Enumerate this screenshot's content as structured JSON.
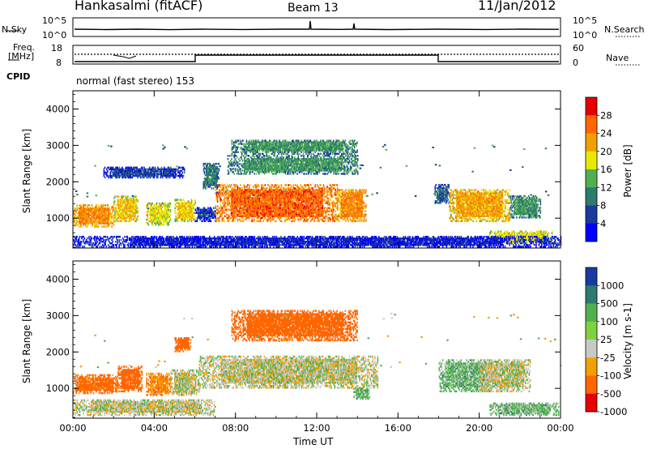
{
  "header": {
    "station": "Hankasalmi (fitACF)",
    "beam": "Beam 13",
    "date": "11/Jan/2012"
  },
  "top_panels": {
    "nsky_label": "N.Sky",
    "nsky_ticks": [
      "10^5",
      "10^0"
    ],
    "nsearch_label": "N.Search",
    "nsearch_ticks": [
      "10^5",
      "10^0"
    ],
    "freq_label": "Freq.",
    "freq_unit": "[MHz]",
    "freq_ticks": [
      "18",
      "8"
    ],
    "nave_label": "Nave",
    "nave_ticks": [
      "60",
      "0"
    ],
    "cpid_label": "CPID",
    "cpid_text": "normal (fast stereo) 153"
  },
  "colors": {
    "velocity_gray": "#c8c8c4"
  },
  "chart_data": [
    {
      "type": "heatmap",
      "name": "power",
      "ylabel": "Slant Range [km]",
      "xlabel": "",
      "xlim": [
        0,
        24
      ],
      "ylim": [
        180,
        4500
      ],
      "x_ticks": [
        "00:00",
        "04:00",
        "08:00",
        "12:00",
        "16:00",
        "20:00",
        "00:00"
      ],
      "y_ticks": [
        {
          "value": 1000,
          "label": "1000"
        },
        {
          "value": 2000,
          "label": "2000"
        },
        {
          "value": 3000,
          "label": "3000"
        },
        {
          "value": 4000,
          "label": "4000"
        }
      ],
      "colorbar": {
        "label": "Power [dB]",
        "ticks": [
          "28",
          "24",
          "20",
          "16",
          "12",
          "8",
          "4"
        ],
        "colors": [
          "#e60000",
          "#ff6600",
          "#f0a000",
          "#e8e800",
          "#50b050",
          "#2e7a6e",
          "#1a3aa0",
          "#0000ff"
        ]
      },
      "regions": [
        {
          "t0": 0.0,
          "t1": 2.0,
          "r0": 750,
          "r1": 1350,
          "level": 26
        },
        {
          "t0": 2.0,
          "t1": 3.2,
          "r0": 900,
          "r1": 1600,
          "level": 22
        },
        {
          "t0": 3.6,
          "t1": 4.8,
          "r0": 800,
          "r1": 1400,
          "level": 20
        },
        {
          "t0": 5.0,
          "t1": 6.0,
          "r0": 900,
          "r1": 1500,
          "level": 22
        },
        {
          "t0": 6.0,
          "t1": 7.0,
          "r0": 900,
          "r1": 1300,
          "level": 8
        },
        {
          "t0": 7.0,
          "t1": 13.0,
          "r0": 900,
          "r1": 1900,
          "level": 28
        },
        {
          "t0": 13.0,
          "t1": 14.4,
          "r0": 900,
          "r1": 1800,
          "level": 26
        },
        {
          "t0": 6.4,
          "t1": 7.2,
          "r0": 1800,
          "r1": 2500,
          "level": 12
        },
        {
          "t0": 7.6,
          "t1": 14.0,
          "r0": 2200,
          "r1": 2700,
          "level": 14
        },
        {
          "t0": 7.8,
          "t1": 14.0,
          "r0": 2750,
          "r1": 3150,
          "level": 14
        },
        {
          "t0": 1.5,
          "t1": 5.5,
          "r0": 2100,
          "r1": 2400,
          "level": 8
        },
        {
          "t0": 17.8,
          "t1": 18.5,
          "r0": 1400,
          "r1": 1900,
          "level": 10
        },
        {
          "t0": 18.5,
          "t1": 21.5,
          "r0": 900,
          "r1": 1800,
          "level": 24
        },
        {
          "t0": 21.5,
          "t1": 23.0,
          "r0": 1000,
          "r1": 1600,
          "level": 14
        },
        {
          "t0": 20.5,
          "t1": 23.6,
          "r0": 300,
          "r1": 650,
          "level": 20
        },
        {
          "t0": 0.0,
          "t1": 24.0,
          "r0": 200,
          "r1": 500,
          "level": 6
        }
      ]
    },
    {
      "type": "heatmap",
      "name": "velocity",
      "ylabel": "Slant Range [km]",
      "xlabel": "Time UT",
      "xlim": [
        0,
        24
      ],
      "ylim": [
        180,
        4500
      ],
      "x_ticks": [
        "00:00",
        "04:00",
        "08:00",
        "12:00",
        "16:00",
        "20:00",
        "00:00"
      ],
      "y_ticks": [
        {
          "value": 1000,
          "label": "1000"
        },
        {
          "value": 2000,
          "label": "2000"
        },
        {
          "value": 3000,
          "label": "3000"
        },
        {
          "value": 4000,
          "label": "4000"
        }
      ],
      "colorbar": {
        "label": "Velocity [m s-1]",
        "ticks": [
          "1000",
          "500",
          "100",
          "25",
          "-25",
          "-100",
          "-500",
          "-1000"
        ],
        "colors": [
          "#1a3aa0",
          "#2e7a6e",
          "#50b050",
          "#80d040",
          "#c8c8c4",
          "#f0a000",
          "#ff6600",
          "#e60000"
        ]
      },
      "regions": [
        {
          "t0": 0.0,
          "t1": 2.2,
          "r0": 850,
          "r1": 1350,
          "level": -150
        },
        {
          "t0": 2.2,
          "t1": 3.4,
          "r0": 900,
          "r1": 1600,
          "level": -200
        },
        {
          "t0": 3.6,
          "t1": 4.8,
          "r0": 800,
          "r1": 1400,
          "level": -100
        },
        {
          "t0": 4.8,
          "t1": 6.2,
          "r0": 800,
          "r1": 1500,
          "level": 0
        },
        {
          "t0": 5.0,
          "t1": 5.8,
          "r0": 2000,
          "r1": 2400,
          "level": -200
        },
        {
          "t0": 6.2,
          "t1": 15.0,
          "r0": 1000,
          "r1": 1900,
          "level": 0
        },
        {
          "t0": 7.8,
          "t1": 14.0,
          "r0": 2300,
          "r1": 3150,
          "level": -200
        },
        {
          "t0": 13.8,
          "t1": 14.6,
          "r0": 700,
          "r1": 1000,
          "level": 50
        },
        {
          "t0": 18.0,
          "t1": 20.5,
          "r0": 900,
          "r1": 1800,
          "level": 50
        },
        {
          "t0": 20.0,
          "t1": 22.5,
          "r0": 900,
          "r1": 1800,
          "level": 0
        },
        {
          "t0": 20.5,
          "t1": 23.9,
          "r0": 250,
          "r1": 600,
          "level": 50
        },
        {
          "t0": 0.0,
          "t1": 7.0,
          "r0": 250,
          "r1": 700,
          "level": 0
        }
      ]
    }
  ]
}
